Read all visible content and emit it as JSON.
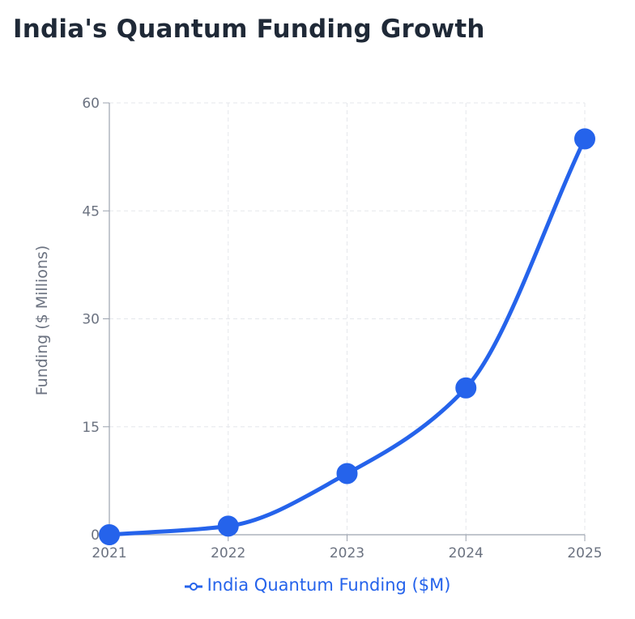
{
  "chart_data": {
    "type": "line",
    "title": "India's Quantum Funding Growth",
    "xlabel": "",
    "ylabel": "Funding ($ Millions)",
    "categories": [
      "2021",
      "2022",
      "2023",
      "2024",
      "2025"
    ],
    "series": [
      {
        "name": "India Quantum Funding ($M)",
        "values": [
          0,
          1.2,
          8.5,
          20.4,
          55
        ],
        "color": "#2563eb"
      }
    ],
    "ylim": [
      0,
      60
    ],
    "yticks": [
      "0",
      "15",
      "30",
      "45",
      "60"
    ],
    "grid": true,
    "grid_style": "dashed",
    "legend_position": "bottom",
    "line_shape": "smooth"
  }
}
